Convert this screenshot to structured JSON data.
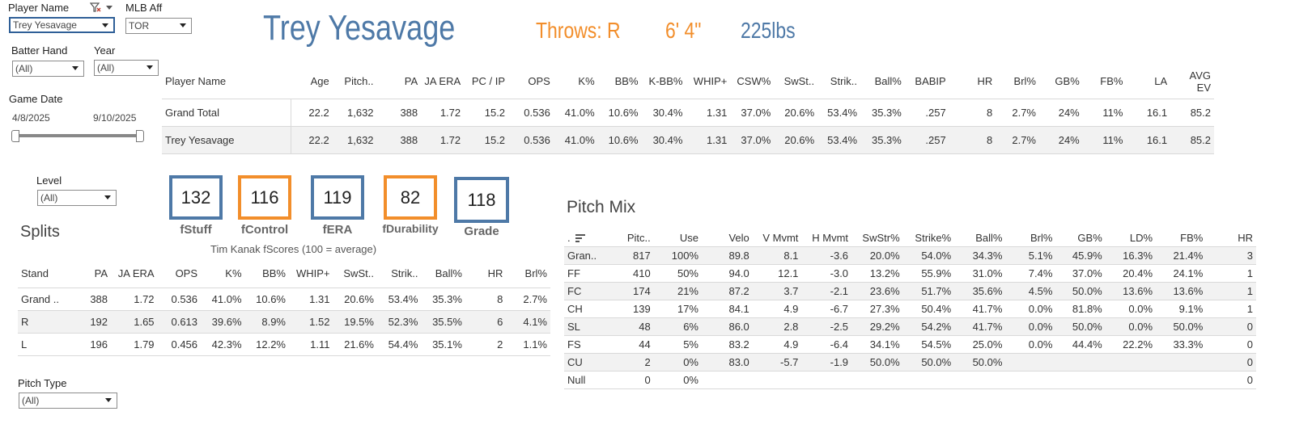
{
  "filters": {
    "player_name": {
      "label": "Player Name",
      "value": "Trey Yesavage"
    },
    "mlb_aff": {
      "label": "MLB Aff",
      "value": "TOR"
    },
    "batter_hand": {
      "label": "Batter Hand",
      "value": "(All)"
    },
    "year": {
      "label": "Year",
      "value": "(All)"
    },
    "game_date": {
      "label": "Game Date",
      "start": "4/8/2025",
      "end": "9/10/2025"
    },
    "level": {
      "label": "Level",
      "value": "(All)"
    },
    "pitch_type": {
      "label": "Pitch Type",
      "value": "(All)"
    }
  },
  "header": {
    "name": "Trey Yesavage",
    "throws": "Throws: R",
    "height": "6' 4\"",
    "weight": "225lbs"
  },
  "summary": {
    "headers": [
      "Player Name",
      "Age",
      "Pitch..",
      "PA",
      "JA ERA",
      "PC / IP",
      "OPS",
      "K%",
      "BB%",
      "K-BB%",
      "WHIP+",
      "CSW%",
      "SwSt..",
      "Strik..",
      "Ball%",
      "BABIP",
      "HR",
      "Brl%",
      "GB%",
      "FB%",
      "LA",
      "AVG EV"
    ],
    "rows": [
      [
        "Grand Total",
        "22.2",
        "1,632",
        "388",
        "1.72",
        "15.2",
        "0.536",
        "41.0%",
        "10.6%",
        "30.4%",
        "1.31",
        "37.0%",
        "20.6%",
        "53.4%",
        "35.3%",
        ".257",
        "8",
        "2.7%",
        "24%",
        "11%",
        "16.1",
        "85.2"
      ],
      [
        "Trey Yesavage",
        "22.2",
        "1,632",
        "388",
        "1.72",
        "15.2",
        "0.536",
        "41.0%",
        "10.6%",
        "30.4%",
        "1.31",
        "37.0%",
        "20.6%",
        "53.4%",
        "35.3%",
        ".257",
        "8",
        "2.7%",
        "24%",
        "11%",
        "16.1",
        "85.2"
      ]
    ]
  },
  "scores": {
    "items": [
      {
        "value": "132",
        "label": "fStuff",
        "color": "#4e79a7"
      },
      {
        "value": "116",
        "label": "fControl",
        "color": "#f28e2b"
      },
      {
        "value": "119",
        "label": "fERA",
        "color": "#4e79a7"
      },
      {
        "value": "82",
        "label": "fDurability",
        "color": "#f28e2b"
      },
      {
        "value": "118",
        "label": "Grade",
        "color": "#4e79a7"
      }
    ],
    "caption": "Tim Kanak fScores (100 = average)"
  },
  "splits": {
    "title": "Splits",
    "headers": [
      "Stand",
      "PA",
      "JA ERA",
      "OPS",
      "K%",
      "BB%",
      "WHIP+",
      "SwSt..",
      "Strik..",
      "Ball%",
      "HR",
      "Brl%"
    ],
    "rows": [
      [
        "Grand ..",
        "388",
        "1.72",
        "0.536",
        "41.0%",
        "10.6%",
        "1.31",
        "20.6%",
        "53.4%",
        "35.3%",
        "8",
        "2.7%"
      ],
      [
        "R",
        "192",
        "1.65",
        "0.613",
        "39.6%",
        "8.9%",
        "1.52",
        "19.5%",
        "52.3%",
        "35.5%",
        "6",
        "4.1%"
      ],
      [
        "L",
        "196",
        "1.79",
        "0.456",
        "42.3%",
        "12.2%",
        "1.11",
        "21.6%",
        "54.4%",
        "35.1%",
        "2",
        "1.1%"
      ]
    ]
  },
  "pitch_mix": {
    "title": "Pitch Mix",
    "headers": [
      ".",
      "Pitc..",
      "Use",
      "Velo",
      "V Mvmt",
      "H Mvmt",
      "SwStr%",
      "Strike%",
      "Ball%",
      "Brl%",
      "GB%",
      "LD%",
      "FB%",
      "HR"
    ],
    "rows": [
      [
        "Gran..",
        "817",
        "100%",
        "89.8",
        "8.1",
        "-3.6",
        "20.0%",
        "54.0%",
        "34.3%",
        "5.1%",
        "45.9%",
        "16.3%",
        "21.4%",
        "3"
      ],
      [
        "FF",
        "410",
        "50%",
        "94.0",
        "12.1",
        "-3.0",
        "13.2%",
        "55.9%",
        "31.0%",
        "7.4%",
        "37.0%",
        "20.4%",
        "24.1%",
        "1"
      ],
      [
        "FC",
        "174",
        "21%",
        "87.2",
        "3.7",
        "-2.1",
        "23.6%",
        "51.7%",
        "35.6%",
        "4.5%",
        "50.0%",
        "13.6%",
        "13.6%",
        "1"
      ],
      [
        "CH",
        "139",
        "17%",
        "84.1",
        "4.9",
        "-6.7",
        "27.3%",
        "50.4%",
        "41.7%",
        "0.0%",
        "81.8%",
        "0.0%",
        "9.1%",
        "1"
      ],
      [
        "SL",
        "48",
        "6%",
        "86.0",
        "2.8",
        "-2.5",
        "29.2%",
        "54.2%",
        "41.7%",
        "0.0%",
        "50.0%",
        "0.0%",
        "50.0%",
        "0"
      ],
      [
        "FS",
        "44",
        "5%",
        "83.2",
        "4.9",
        "-6.4",
        "34.1%",
        "54.5%",
        "25.0%",
        "0.0%",
        "44.4%",
        "22.2%",
        "33.3%",
        "0"
      ],
      [
        "CU",
        "2",
        "0%",
        "83.0",
        "-5.7",
        "-1.9",
        "50.0%",
        "50.0%",
        "50.0%",
        "",
        "",
        "",
        "",
        "0"
      ],
      [
        "Null",
        "0",
        "0%",
        "",
        "",
        "",
        "",
        "",
        "",
        "",
        "",
        "",
        "",
        "0"
      ]
    ]
  },
  "colors": {
    "blue": "#4e79a7",
    "orange": "#f28e2b",
    "filter_active": "#2f5f97"
  }
}
